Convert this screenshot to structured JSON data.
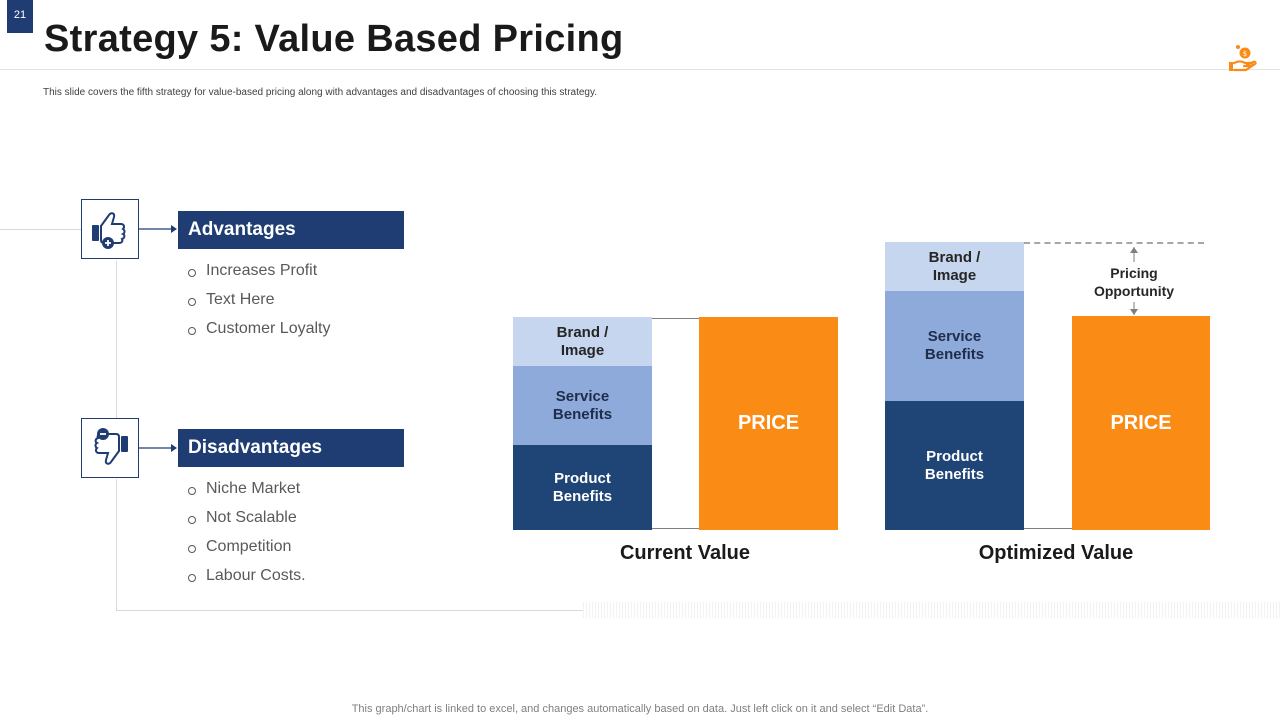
{
  "slide_number": "21",
  "title": "Strategy 5: Value Based Pricing",
  "subtitle": "This slide covers the fifth strategy for value-based pricing along with advantages and disadvantages of choosing this strategy.",
  "footnote": "This graph/chart is linked to excel,  and changes automatically based on data. Just left click on it and select “Edit Data”.",
  "logo_icon": "hand-coin-icon",
  "advantages": {
    "heading": "Advantages",
    "icon": "thumbs-up-plus-icon",
    "items": [
      "Increases Profit",
      "Text Here",
      "Customer Loyalty"
    ]
  },
  "disadvantages": {
    "heading": "Disadvantages",
    "icon": "thumbs-down-minus-icon",
    "items": [
      "Niche Market",
      "Not Scalable",
      "Competition",
      "Labour Costs."
    ]
  },
  "charts": {
    "current": {
      "label": "Current Value",
      "segments": {
        "brand": "Brand / Image",
        "service": "Service Benefits",
        "product": "Product Benefits"
      },
      "price_label": "PRICE"
    },
    "optimized": {
      "label": "Optimized Value",
      "segments": {
        "brand": "Brand / Image",
        "service": "Service Benefits",
        "product": "Product Benefits"
      },
      "price_label": "PRICE",
      "opportunity_label": "Pricing Opportunity"
    }
  },
  "colors": {
    "navy": "#1f3d73",
    "brand_segment": "#c5d6ee",
    "service_segment": "#8eaadb",
    "product_segment": "#1f4476",
    "price": "#fa8c16"
  }
}
